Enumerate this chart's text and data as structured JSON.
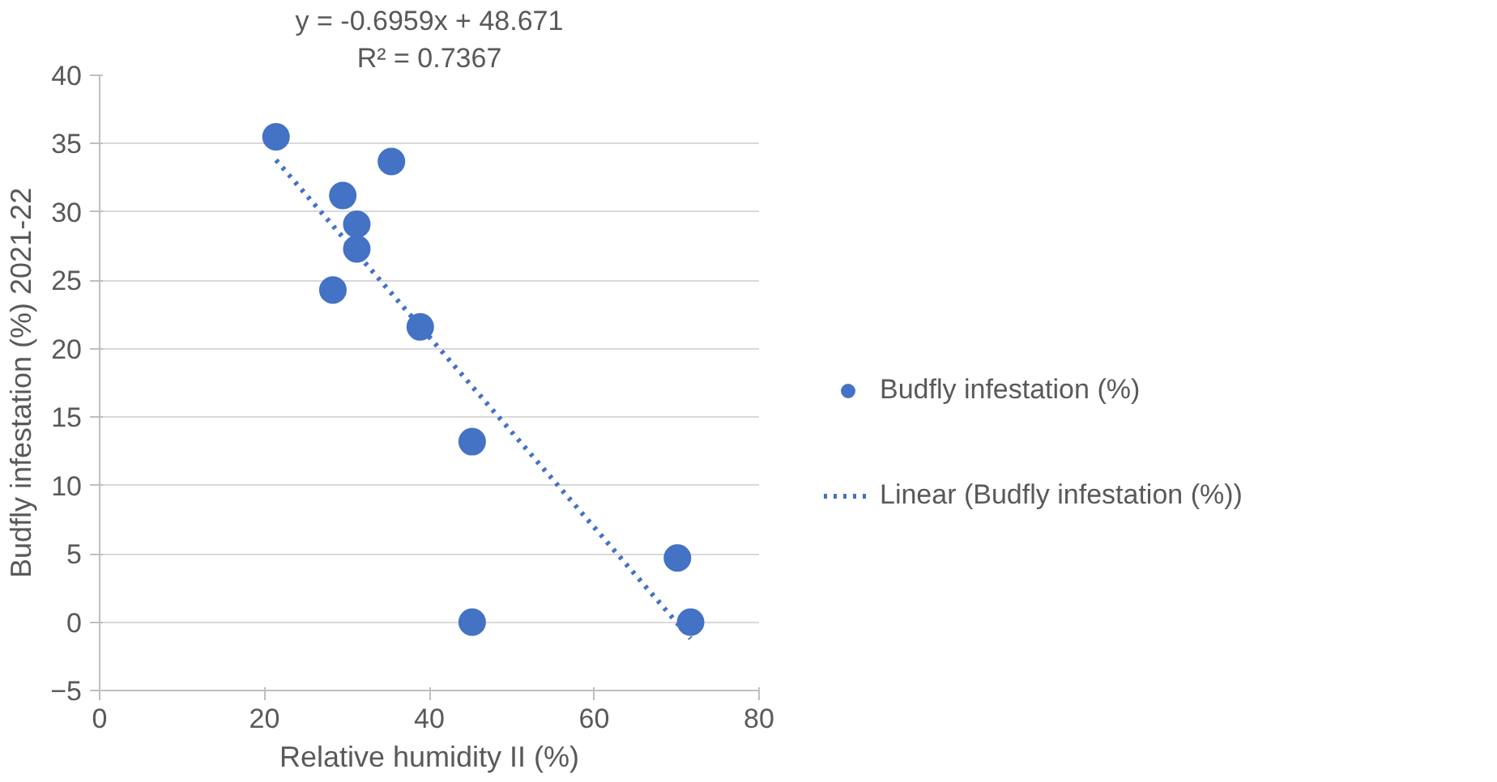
{
  "chart_data": {
    "type": "scatter",
    "xlabel": "Relative humidity II (%)",
    "ylabel": "Budfly infestation (%) 2021-22",
    "annotations": [
      "y = -0.6959x + 48.671",
      "R² = 0.7367"
    ],
    "series": [
      {
        "name": "Budfly infestation (%)",
        "color": "#4472c4",
        "marker": "circle",
        "x": [
          21.4,
          35.4,
          29.5,
          31.2,
          31.2,
          28.3,
          38.9,
          45.2,
          45.2,
          70.1,
          71.7
        ],
        "values": [
          35.5,
          33.7,
          31.2,
          29.1,
          27.3,
          24.3,
          21.6,
          13.2,
          0,
          4.7,
          0
        ]
      },
      {
        "name": "Linear (Budfly infestation (%))",
        "type": "line",
        "color": "#4472c4",
        "line_style": "dotted",
        "x": [
          21.4,
          71.7
        ],
        "values": [
          33.8,
          -1.2
        ]
      }
    ],
    "xlim": [
      0,
      80
    ],
    "xticks": [
      0,
      20,
      40,
      60,
      80
    ],
    "ylim": [
      -5,
      40
    ],
    "yticks": [
      -5,
      0,
      5,
      10,
      15,
      20,
      25,
      30,
      35,
      40
    ],
    "grid": "y",
    "legend": "right"
  }
}
